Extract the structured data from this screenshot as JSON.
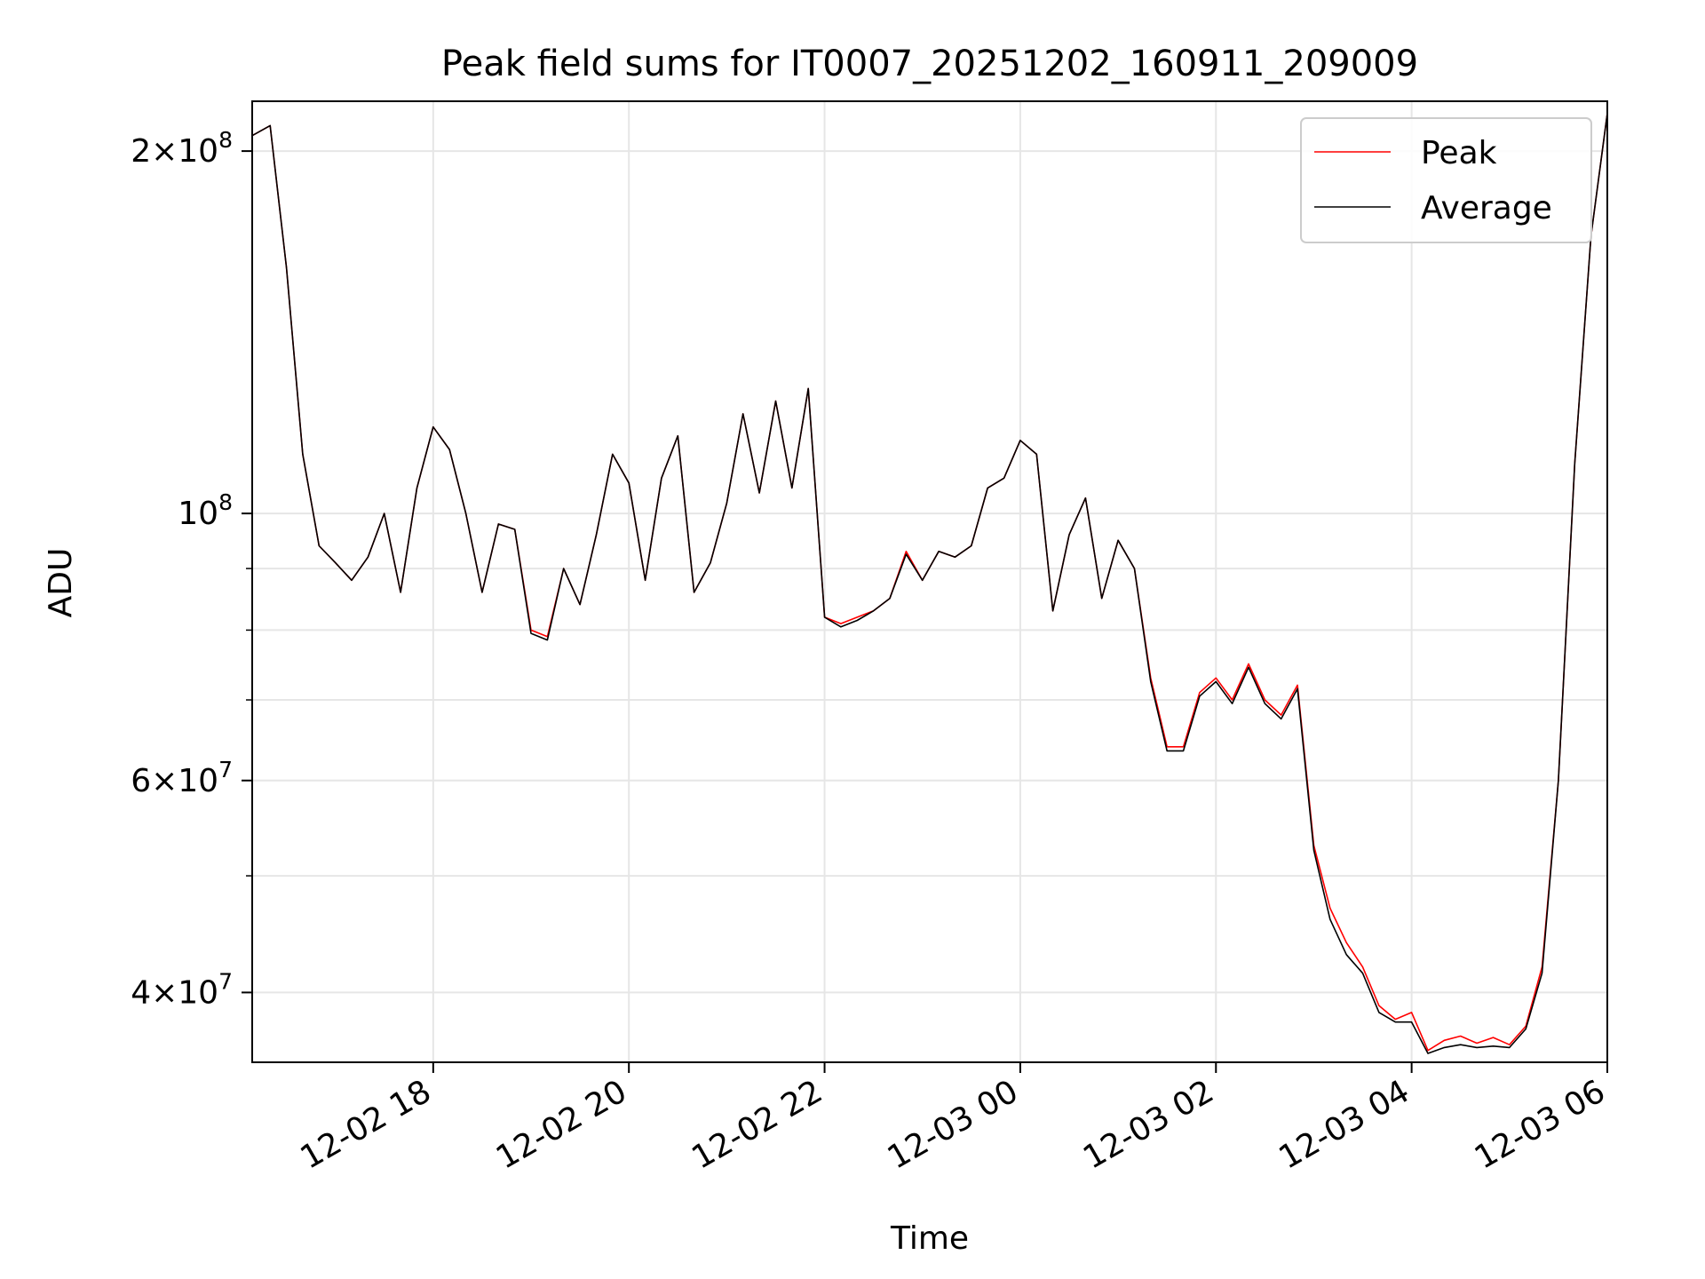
{
  "chart_data": {
    "type": "line",
    "title": "Peak field sums for IT0007_20251202_160911_209009",
    "xlabel": "Time",
    "ylabel": "ADU",
    "yscale": "log",
    "ylim": [
      35000000,
      220000000
    ],
    "xlim": [
      "2025-12-02 16:09",
      "2025-12-03 06:00"
    ],
    "grid": true,
    "legend_position": "top-right",
    "x_ticks": [
      {
        "time": "2025-12-02 18:00",
        "label": "12-02 18"
      },
      {
        "time": "2025-12-02 20:00",
        "label": "12-02 20"
      },
      {
        "time": "2025-12-02 22:00",
        "label": "12-02 22"
      },
      {
        "time": "2025-12-03 00:00",
        "label": "12-03 00"
      },
      {
        "time": "2025-12-03 02:00",
        "label": "12-03 02"
      },
      {
        "time": "2025-12-03 04:00",
        "label": "12-03 04"
      },
      {
        "time": "2025-12-03 06:00",
        "label": "12-03 06"
      }
    ],
    "y_ticks": [
      {
        "value": 40000000,
        "mantissa": "4",
        "exponent": "7"
      },
      {
        "value": 60000000,
        "mantissa": "6",
        "exponent": "7"
      },
      {
        "value": 100000000,
        "mantissa": "",
        "exponent": "8"
      },
      {
        "value": 200000000,
        "mantissa": "2",
        "exponent": "8"
      }
    ],
    "y_minor_ticks": [
      50000000,
      70000000,
      80000000,
      90000000
    ],
    "x": [
      "2025-12-02 16:09",
      "2025-12-02 16:20",
      "2025-12-02 16:30",
      "2025-12-02 16:40",
      "2025-12-02 16:50",
      "2025-12-02 17:00",
      "2025-12-02 17:10",
      "2025-12-02 17:20",
      "2025-12-02 17:30",
      "2025-12-02 17:40",
      "2025-12-02 17:50",
      "2025-12-02 18:00",
      "2025-12-02 18:10",
      "2025-12-02 18:20",
      "2025-12-02 18:30",
      "2025-12-02 18:40",
      "2025-12-02 18:50",
      "2025-12-02 19:00",
      "2025-12-02 19:10",
      "2025-12-02 19:20",
      "2025-12-02 19:30",
      "2025-12-02 19:40",
      "2025-12-02 19:50",
      "2025-12-02 20:00",
      "2025-12-02 20:10",
      "2025-12-02 20:20",
      "2025-12-02 20:30",
      "2025-12-02 20:40",
      "2025-12-02 20:50",
      "2025-12-02 21:00",
      "2025-12-02 21:10",
      "2025-12-02 21:20",
      "2025-12-02 21:30",
      "2025-12-02 21:40",
      "2025-12-02 21:50",
      "2025-12-02 22:00",
      "2025-12-02 22:10",
      "2025-12-02 22:20",
      "2025-12-02 22:30",
      "2025-12-02 22:40",
      "2025-12-02 22:50",
      "2025-12-02 23:00",
      "2025-12-02 23:10",
      "2025-12-02 23:20",
      "2025-12-02 23:30",
      "2025-12-02 23:40",
      "2025-12-02 23:50",
      "2025-12-03 00:00",
      "2025-12-03 00:10",
      "2025-12-03 00:20",
      "2025-12-03 00:30",
      "2025-12-03 00:40",
      "2025-12-03 00:50",
      "2025-12-03 01:00",
      "2025-12-03 01:10",
      "2025-12-03 01:20",
      "2025-12-03 01:30",
      "2025-12-03 01:40",
      "2025-12-03 01:50",
      "2025-12-03 02:00",
      "2025-12-03 02:10",
      "2025-12-03 02:20",
      "2025-12-03 02:30",
      "2025-12-03 02:40",
      "2025-12-03 02:50",
      "2025-12-03 03:00",
      "2025-12-03 03:10",
      "2025-12-03 03:20",
      "2025-12-03 03:30",
      "2025-12-03 03:40",
      "2025-12-03 03:50",
      "2025-12-03 04:00",
      "2025-12-03 04:10",
      "2025-12-03 04:20",
      "2025-12-03 04:30",
      "2025-12-03 04:40",
      "2025-12-03 04:50",
      "2025-12-03 05:00",
      "2025-12-03 05:10",
      "2025-12-03 05:20",
      "2025-12-03 05:30",
      "2025-12-03 05:40",
      "2025-12-03 05:50",
      "2025-12-03 06:00"
    ],
    "series": [
      {
        "name": "Peak",
        "color": "#ff0000",
        "values": [
          206000000,
          210000000,
          160000000,
          112000000,
          94000000,
          91000000,
          88000000,
          92000000,
          100000000,
          86000000,
          105000000,
          118000000,
          113000000,
          100000000,
          86000000,
          98000000,
          97000000,
          80000000,
          79000000,
          90000000,
          84000000,
          96000000,
          112000000,
          106000000,
          88000000,
          107000000,
          116000000,
          86000000,
          91000000,
          102000000,
          121000000,
          104000000,
          124000000,
          105000000,
          127000000,
          82000000,
          81000000,
          82000000,
          83000000,
          85000000,
          93000000,
          88000000,
          93000000,
          92000000,
          94000000,
          105000000,
          107000000,
          115000000,
          112000000,
          83000000,
          96000000,
          103000000,
          85000000,
          95000000,
          90000000,
          73000000,
          64000000,
          64000000,
          71000000,
          73000000,
          70000000,
          75000000,
          70000000,
          68000000,
          72000000,
          53000000,
          47000000,
          44000000,
          42000000,
          39000000,
          38000000,
          38500000,
          35800000,
          36500000,
          36800000,
          36300000,
          36700000,
          36200000,
          37500000,
          42000000,
          60000000,
          110000000,
          170000000,
          215000000
        ]
      },
      {
        "name": "Average",
        "color": "#000000",
        "values": [
          206000000,
          210000000,
          160000000,
          112000000,
          94000000,
          91000000,
          88000000,
          92000000,
          100000000,
          86000000,
          105000000,
          118000000,
          113000000,
          100000000,
          86000000,
          98000000,
          97000000,
          79500000,
          78500000,
          90000000,
          84000000,
          96000000,
          112000000,
          106000000,
          88000000,
          107000000,
          116000000,
          86000000,
          91000000,
          102000000,
          121000000,
          104000000,
          124000000,
          105000000,
          127000000,
          82000000,
          80500000,
          81500000,
          83000000,
          85000000,
          92500000,
          88000000,
          93000000,
          92000000,
          94000000,
          105000000,
          107000000,
          115000000,
          112000000,
          83000000,
          96000000,
          103000000,
          85000000,
          95000000,
          90000000,
          72500000,
          63500000,
          63500000,
          70500000,
          72500000,
          69500000,
          74500000,
          69500000,
          67500000,
          71500000,
          52500000,
          46000000,
          43000000,
          41500000,
          38500000,
          37800000,
          37800000,
          35600000,
          36000000,
          36200000,
          36000000,
          36100000,
          36000000,
          37300000,
          41500000,
          60000000,
          110000000,
          170000000,
          215000000
        ]
      }
    ]
  }
}
